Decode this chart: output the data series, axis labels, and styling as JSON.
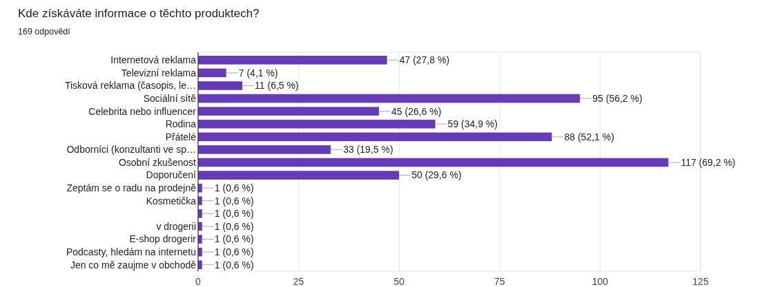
{
  "chart_data": {
    "type": "bar",
    "orientation": "horizontal",
    "title": "Kde získáváte informace o těchto produktech?",
    "subtitle": "169 odpovědí",
    "categories": [
      "Internetová reklama",
      "Televizní reklama",
      "Tisková reklama (časopis, le…",
      "Sociální sítě",
      "Celebrita nebo influencer",
      "Rodina",
      "Přátelé",
      "Odborníci (konzultanti ve sp…",
      "Osobní zkušenost",
      "Doporučení",
      "Zeptám se o radu na prodejně",
      "Kosmetička",
      null,
      "v drogerii",
      "E-shop drogerir",
      "Podcasty, hledám na internetu",
      "Jen co mě zaujme v obchodě"
    ],
    "values": [
      47,
      7,
      11,
      95,
      45,
      59,
      88,
      33,
      117,
      50,
      1,
      1,
      1,
      1,
      1,
      1,
      1
    ],
    "value_labels": [
      "47 (27,8 %)",
      "7 (4,1 %)",
      "11 (6,5 %)",
      "95 (56,2 %)",
      "45 (26,6 %)",
      "59 (34,9 %)",
      "88 (52,1 %)",
      "33 (19,5 %)",
      "117 (69,2 %)",
      "50 (29,6 %)",
      "1 (0,6 %)",
      "1 (0,6 %)",
      "1 (0,6 %)",
      "1 (0,6 %)",
      "1 (0,6 %)",
      "1 (0,6 %)",
      "1 (0,6 %)"
    ],
    "color": "#673ab7",
    "xlim": [
      0,
      125
    ],
    "xticks": [
      0,
      25,
      50,
      75,
      100,
      125
    ],
    "grid": "x"
  }
}
